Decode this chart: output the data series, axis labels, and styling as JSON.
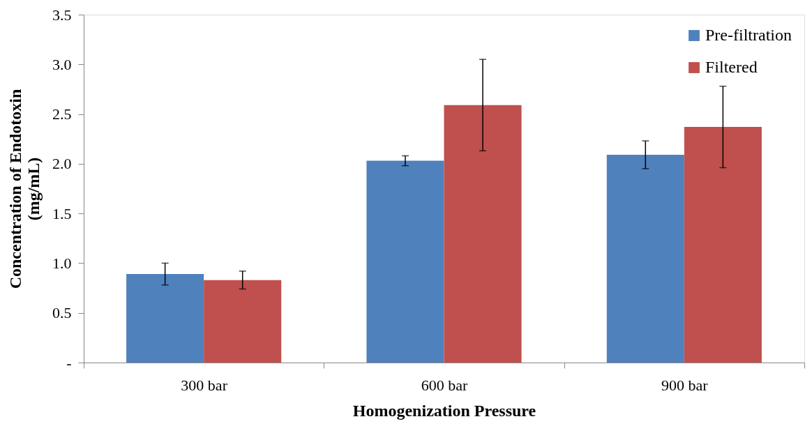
{
  "chart_data": {
    "type": "bar",
    "xlabel": "Homogenization Pressure",
    "ylabel": "Concentration of Endotoxin\n(mg/mL)",
    "categories": [
      "300 bar",
      "600 bar",
      "900 bar"
    ],
    "series": [
      {
        "name": "Pre-filtration",
        "color": "#4f81bd",
        "values": [
          0.89,
          2.03,
          2.09
        ],
        "errors": [
          0.11,
          0.05,
          0.14
        ]
      },
      {
        "name": "Filtered",
        "color": "#c0504d",
        "values": [
          0.83,
          2.59,
          2.37
        ],
        "errors": [
          0.09,
          0.46,
          0.41
        ]
      }
    ],
    "ylim": [
      0,
      3.5
    ],
    "yticks": [
      {
        "value": 0,
        "label": "-"
      },
      0.5,
      {
        "value": 1,
        "label": "1.0"
      },
      1.5,
      {
        "value": 2,
        "label": "2.0"
      },
      2.5,
      {
        "value": 3,
        "label": "3.0"
      },
      3.5
    ],
    "grid": false,
    "legend": "top right"
  }
}
